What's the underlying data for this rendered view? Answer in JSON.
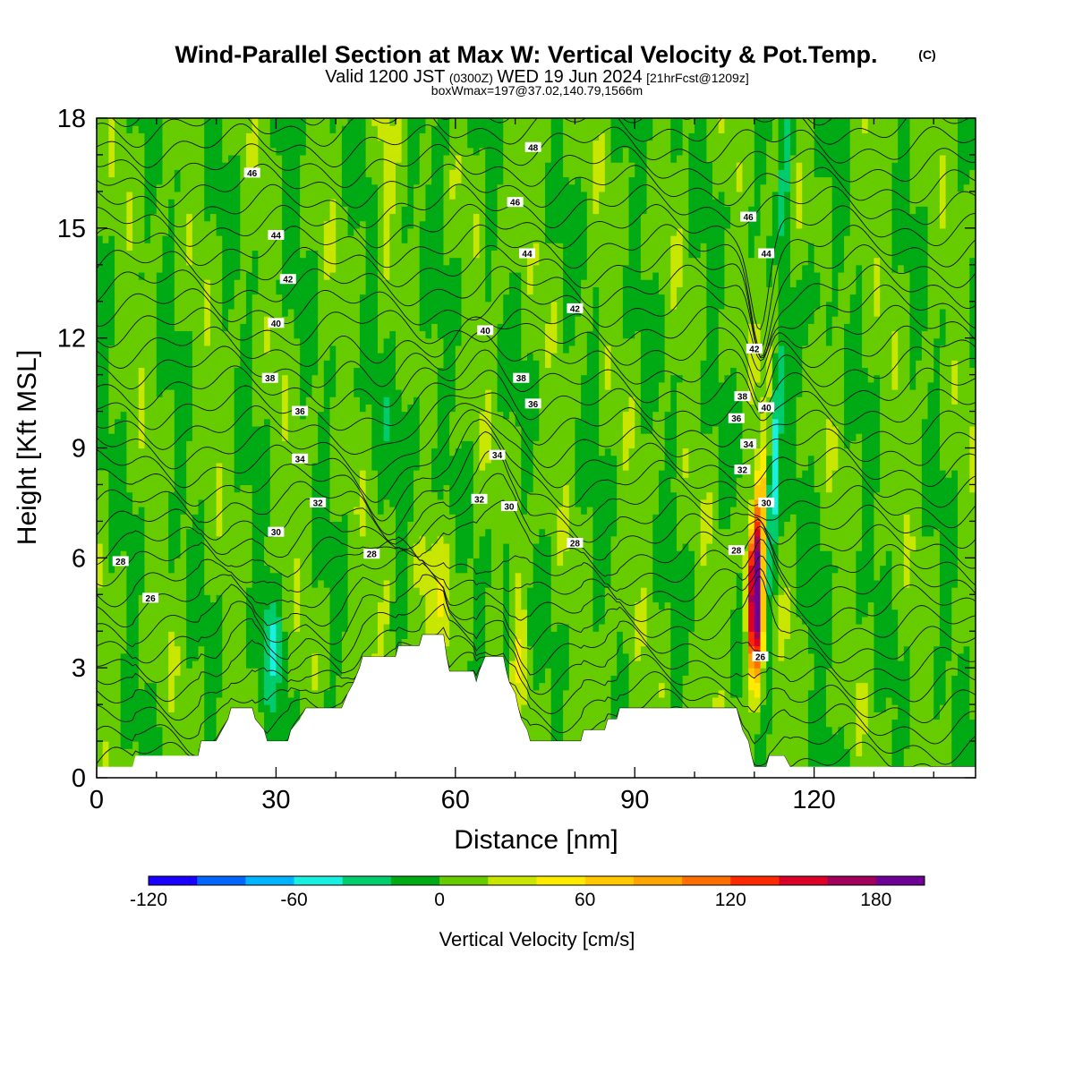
{
  "title": {
    "main": "Wind-Parallel Section at Max W: Vertical Velocity & Pot.Temp.",
    "copyright": "(C)",
    "valid_a": "Valid 1200 JST",
    "valid_b": "(0300Z)",
    "valid_c": "WED 19 Jun 2024",
    "valid_d": "[21hrFcst@1209z]",
    "box": "boxWmax=197@37.02,140.79,1566m"
  },
  "chart_data": {
    "type": "heatmap",
    "xlabel": "Distance [nm]",
    "ylabel": "Height [Kft MSL]",
    "xlim": [
      0,
      147
    ],
    "ylim": [
      0,
      18
    ],
    "x_ticks": [
      "0",
      "30",
      "60",
      "90",
      "120"
    ],
    "x_tick_values": [
      0,
      30,
      60,
      90,
      120
    ],
    "y_ticks": [
      "0",
      "3",
      "6",
      "9",
      "12",
      "15",
      "18"
    ],
    "y_tick_values": [
      0,
      3,
      6,
      9,
      12,
      15,
      18
    ],
    "colorbar": {
      "label": "Vertical Velocity [cm/s]",
      "tick_labels": [
        "-120",
        "-60",
        "0",
        "60",
        "120",
        "180"
      ],
      "tick_values": [
        -120,
        -60,
        0,
        60,
        120,
        180
      ],
      "range": [
        -120,
        200
      ],
      "step": 20,
      "colors": [
        "#1a00ff",
        "#0066ff",
        "#00b4ff",
        "#19f0e0",
        "#00cc6e",
        "#00aa14",
        "#66cc00",
        "#c8e600",
        "#ffeb00",
        "#ffc800",
        "#ffa500",
        "#ff6e00",
        "#ff2800",
        "#dc0028",
        "#a0005a",
        "#6e0096"
      ]
    },
    "terrain_kft": [
      [
        0,
        0.3
      ],
      [
        6,
        0.3
      ],
      [
        6.5,
        0.6
      ],
      [
        17,
        0.6
      ],
      [
        17.5,
        1.0
      ],
      [
        20,
        1.0
      ],
      [
        21,
        1.3
      ],
      [
        22,
        1.6
      ],
      [
        22.5,
        1.9
      ],
      [
        26,
        1.9
      ],
      [
        26.5,
        1.6
      ],
      [
        28,
        1.3
      ],
      [
        28.5,
        1.0
      ],
      [
        32,
        1.0
      ],
      [
        32.5,
        1.3
      ],
      [
        34,
        1.6
      ],
      [
        35,
        1.9
      ],
      [
        41,
        1.9
      ],
      [
        42,
        2.3
      ],
      [
        43,
        2.6
      ],
      [
        44,
        3.0
      ],
      [
        44.5,
        3.3
      ],
      [
        50,
        3.3
      ],
      [
        50.5,
        3.6
      ],
      [
        54,
        3.6
      ],
      [
        54.5,
        3.9
      ],
      [
        58,
        3.9
      ],
      [
        58.5,
        3.3
      ],
      [
        59,
        2.9
      ],
      [
        63,
        2.9
      ],
      [
        63.5,
        2.6
      ],
      [
        64,
        2.9
      ],
      [
        65,
        3.3
      ],
      [
        68,
        3.3
      ],
      [
        68.5,
        2.9
      ],
      [
        69,
        2.6
      ],
      [
        70,
        2.3
      ],
      [
        70.5,
        1.9
      ],
      [
        71,
        1.6
      ],
      [
        72,
        1.3
      ],
      [
        72.5,
        1.0
      ],
      [
        81,
        1.0
      ],
      [
        81.5,
        1.3
      ],
      [
        85,
        1.3
      ],
      [
        85.5,
        1.6
      ],
      [
        87,
        1.6
      ],
      [
        87.5,
        1.9
      ],
      [
        107,
        1.9
      ],
      [
        107.5,
        1.6
      ],
      [
        108,
        1.3
      ],
      [
        109,
        1.0
      ],
      [
        109.5,
        0.6
      ],
      [
        110,
        0.3
      ],
      [
        112,
        0.3
      ],
      [
        112.5,
        0.6
      ],
      [
        115,
        0.6
      ],
      [
        116,
        0.3
      ],
      [
        147,
        0.3
      ]
    ],
    "contour_labels": [
      {
        "x": 4,
        "y": 5.9,
        "text": "28"
      },
      {
        "x": 9,
        "y": 4.9,
        "text": "26"
      },
      {
        "x": 26,
        "y": 16.5,
        "text": "46"
      },
      {
        "x": 30,
        "y": 14.8,
        "text": "44"
      },
      {
        "x": 32,
        "y": 13.6,
        "text": "42"
      },
      {
        "x": 30,
        "y": 12.4,
        "text": "40"
      },
      {
        "x": 29,
        "y": 10.9,
        "text": "38"
      },
      {
        "x": 34,
        "y": 10.0,
        "text": "36"
      },
      {
        "x": 34,
        "y": 8.7,
        "text": "34"
      },
      {
        "x": 37,
        "y": 7.5,
        "text": "32"
      },
      {
        "x": 30,
        "y": 6.7,
        "text": "30"
      },
      {
        "x": 46,
        "y": 6.1,
        "text": "28"
      },
      {
        "x": 73,
        "y": 17.2,
        "text": "48"
      },
      {
        "x": 70,
        "y": 15.7,
        "text": "46"
      },
      {
        "x": 72,
        "y": 14.3,
        "text": "44"
      },
      {
        "x": 80,
        "y": 12.8,
        "text": "42"
      },
      {
        "x": 65,
        "y": 12.2,
        "text": "40"
      },
      {
        "x": 71,
        "y": 10.9,
        "text": "38"
      },
      {
        "x": 73,
        "y": 10.2,
        "text": "36"
      },
      {
        "x": 67,
        "y": 8.8,
        "text": "34"
      },
      {
        "x": 64,
        "y": 7.6,
        "text": "32"
      },
      {
        "x": 69,
        "y": 7.4,
        "text": "30"
      },
      {
        "x": 80,
        "y": 6.4,
        "text": "28"
      },
      {
        "x": 109,
        "y": 15.3,
        "text": "46"
      },
      {
        "x": 112,
        "y": 14.3,
        "text": "44"
      },
      {
        "x": 110,
        "y": 11.7,
        "text": "42"
      },
      {
        "x": 108,
        "y": 10.4,
        "text": "38"
      },
      {
        "x": 112,
        "y": 10.1,
        "text": "40"
      },
      {
        "x": 107,
        "y": 9.8,
        "text": "36"
      },
      {
        "x": 109,
        "y": 9.1,
        "text": "34"
      },
      {
        "x": 108,
        "y": 8.4,
        "text": "32"
      },
      {
        "x": 112,
        "y": 7.5,
        "text": "30"
      },
      {
        "x": 107,
        "y": 6.2,
        "text": "28"
      },
      {
        "x": 111,
        "y": 3.3,
        "text": "26"
      }
    ]
  }
}
